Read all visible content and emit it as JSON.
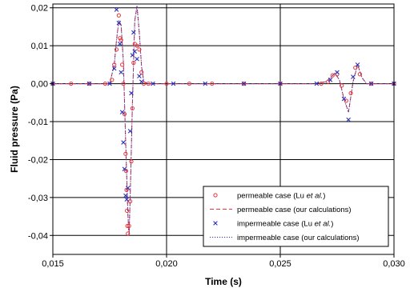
{
  "chart_data": {
    "type": "line",
    "xlabel": "Time (s)",
    "ylabel": "Fluid pressure (Pa)",
    "xlim": [
      0.015,
      0.03
    ],
    "ylim": [
      -0.045,
      0.021
    ],
    "x_ticks": [
      0.015,
      0.02,
      0.025,
      0.03
    ],
    "x_tick_labels": [
      "0,015",
      "0,020",
      "0,025",
      "0,030"
    ],
    "y_ticks": [
      0.02,
      0.01,
      0.0,
      -0.01,
      -0.02,
      -0.03,
      -0.04
    ],
    "y_tick_labels": [
      "0,02",
      "0,01",
      "0,00",
      "-0,01",
      "-0,02",
      "-0,03",
      "-0,04"
    ],
    "grid": true,
    "legend_position": "bottom-right",
    "colors": {
      "red": "#e8343b",
      "blue": "#2a2fb6",
      "grid": "#000000"
    },
    "series": [
      {
        "name_parts": [
          "permeable case (Lu ",
          "et al.",
          ")"
        ],
        "style": "circle-markers",
        "color": "#e8343b",
        "x": [
          0.015,
          0.0158,
          0.0166,
          0.0173,
          0.0176,
          0.0177,
          0.0178,
          0.0179,
          0.01795,
          0.018,
          0.01805,
          0.0181,
          0.01815,
          0.0182,
          0.01822,
          0.01824,
          0.01826,
          0.01828,
          0.0183,
          0.01835,
          0.0184,
          0.01845,
          0.0185,
          0.01855,
          0.0186,
          0.0187,
          0.0188,
          0.0189,
          0.019,
          0.0192,
          0.02,
          0.021,
          0.022,
          0.0234,
          0.025,
          0.0268,
          0.0271,
          0.0273,
          0.0275,
          0.0277,
          0.0279,
          0.0281,
          0.0283,
          0.0285,
          0.029,
          0.03
        ],
        "y": [
          0.0,
          0.0,
          0.0,
          0.0,
          0.001,
          0.005,
          0.009,
          0.018,
          0.012,
          0.0115,
          0.005,
          0.0,
          -0.008,
          -0.0185,
          -0.023,
          -0.028,
          -0.0335,
          -0.0375,
          -0.0395,
          -0.0375,
          -0.031,
          -0.0205,
          -0.0065,
          0.0055,
          0.0105,
          0.01,
          0.009,
          0.003,
          0.0,
          0.0,
          0.0,
          0.0,
          0.0,
          0.0,
          0.0,
          0.0,
          0.0005,
          0.0022,
          0.0025,
          -0.0005,
          -0.0045,
          -0.0025,
          0.0042,
          0.0025,
          0.0,
          0.0
        ]
      },
      {
        "name_parts": [
          "permeable case (our calculations)"
        ],
        "style": "dashed-line",
        "color": "#e8343b",
        "x": [
          0.015,
          0.017,
          0.0175,
          0.0177,
          0.0178,
          0.0179,
          0.018,
          0.0181,
          0.0182,
          0.0183,
          0.01835,
          0.0184,
          0.0185,
          0.0186,
          0.0187,
          0.0188,
          0.0189,
          0.019,
          0.0192,
          0.0265,
          0.027,
          0.0272,
          0.0274,
          0.0276,
          0.0278,
          0.028,
          0.0282,
          0.0284,
          0.0286,
          0.0288,
          0.03
        ],
        "y": [
          0.0,
          0.0,
          0.0,
          0.005,
          0.0115,
          0.0165,
          0.0155,
          0.006,
          -0.015,
          -0.0345,
          -0.04,
          -0.03,
          -0.005,
          0.0165,
          0.0205,
          0.0135,
          0.0045,
          0.0005,
          0.0,
          0.0,
          0.0005,
          0.0015,
          0.0028,
          0.001,
          -0.004,
          -0.0075,
          0.0005,
          0.005,
          0.0015,
          0.0,
          0.0
        ]
      },
      {
        "name_parts": [
          "impermeable case (Lu ",
          "et al.",
          ")"
        ],
        "style": "x-markers",
        "color": "#2a2fb6",
        "x": [
          0.015,
          0.0166,
          0.0175,
          0.0177,
          0.0178,
          0.0179,
          0.01795,
          0.018,
          0.01805,
          0.0181,
          0.01815,
          0.0182,
          0.01825,
          0.0183,
          0.0184,
          0.01845,
          0.0185,
          0.01855,
          0.0186,
          0.0187,
          0.0188,
          0.0189,
          0.0194,
          0.0203,
          0.0217,
          0.0234,
          0.025,
          0.0266,
          0.0272,
          0.0275,
          0.0278,
          0.028,
          0.0282,
          0.0284,
          0.029,
          0.03
        ],
        "y": [
          0.0,
          0.0,
          0.0,
          0.004,
          0.0195,
          0.016,
          0.0105,
          0.003,
          -0.0075,
          -0.0155,
          -0.0225,
          -0.0295,
          -0.0305,
          -0.0275,
          -0.0125,
          -0.0025,
          0.0075,
          0.0135,
          0.0085,
          0.0065,
          0.002,
          0.0005,
          0.0,
          0.0,
          0.0,
          0.0,
          0.0,
          0.0,
          0.001,
          0.003,
          -0.004,
          -0.0095,
          0.0018,
          0.005,
          0.0,
          0.0
        ]
      },
      {
        "name_parts": [
          "impermeable case (our calculations)"
        ],
        "style": "dotted-line",
        "color": "#2a2fb6",
        "x": [
          0.015,
          0.017,
          0.0175,
          0.0177,
          0.0178,
          0.0179,
          0.018,
          0.0181,
          0.0182,
          0.0183,
          0.01835,
          0.0184,
          0.0185,
          0.0186,
          0.0187,
          0.0188,
          0.0189,
          0.019,
          0.0192,
          0.0265,
          0.027,
          0.0272,
          0.0274,
          0.0276,
          0.0278,
          0.028,
          0.0282,
          0.0284,
          0.0286,
          0.0288,
          0.03
        ],
        "y": [
          0.0,
          0.0,
          0.0,
          0.005,
          0.0115,
          0.0165,
          0.0155,
          0.006,
          -0.015,
          -0.0345,
          -0.04,
          -0.03,
          -0.005,
          0.0165,
          0.0205,
          0.0135,
          0.0045,
          0.0005,
          0.0,
          0.0,
          0.0005,
          0.0015,
          0.0028,
          0.001,
          -0.004,
          -0.0075,
          0.0005,
          0.005,
          0.0015,
          0.0,
          0.0
        ]
      }
    ]
  }
}
